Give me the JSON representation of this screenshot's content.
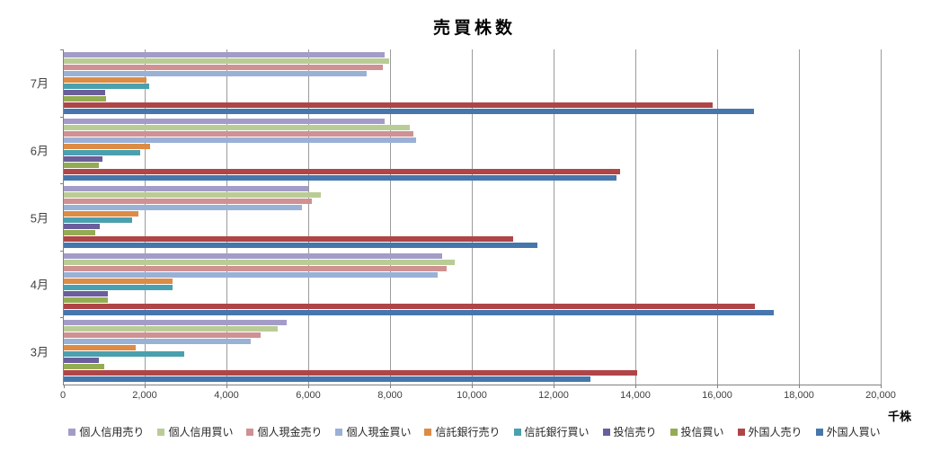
{
  "title": "売買株数",
  "axis": {
    "unit_label": "千株",
    "ticks": [
      {
        "label": "0",
        "value": 0
      },
      {
        "label": "2,000",
        "value": 2000
      },
      {
        "label": "4,000",
        "value": 4000
      },
      {
        "label": "6,000",
        "value": 6000
      },
      {
        "label": "8,000",
        "value": 8000
      },
      {
        "label": "10,000",
        "value": 10000
      },
      {
        "label": "12,000",
        "value": 12000
      },
      {
        "label": "14,000",
        "value": 14000
      },
      {
        "label": "16,000",
        "value": 16000
      },
      {
        "label": "18,000",
        "value": 18000
      },
      {
        "label": "20,000",
        "value": 20000
      }
    ]
  },
  "chart_data": {
    "type": "bar",
    "orientation": "horizontal",
    "title": "売買株数",
    "xlabel": "千株",
    "ylabel": "",
    "xlim": [
      0,
      20000
    ],
    "grid": true,
    "legend_position": "bottom",
    "categories": [
      "7月",
      "6月",
      "5月",
      "4月",
      "3月"
    ],
    "series": [
      {
        "name": "個人信用売り",
        "color": "#A49CC8",
        "values": [
          7850,
          7840,
          5980,
          9260,
          5460
        ]
      },
      {
        "name": "個人信用買い",
        "color": "#B9CC96",
        "values": [
          7950,
          8470,
          6290,
          9550,
          5220
        ]
      },
      {
        "name": "個人現金売り",
        "color": "#CF9192",
        "values": [
          7800,
          8560,
          6060,
          9360,
          4820
        ]
      },
      {
        "name": "個人現金買い",
        "color": "#9AB1D6",
        "values": [
          7400,
          8610,
          5830,
          9140,
          4580
        ]
      },
      {
        "name": "信託銀行売り",
        "color": "#DD8C45",
        "values": [
          2020,
          2120,
          1830,
          2670,
          1750
        ]
      },
      {
        "name": "信託銀行買い",
        "color": "#4AA0AE",
        "values": [
          2080,
          1870,
          1660,
          2670,
          2940
        ]
      },
      {
        "name": "投信売り",
        "color": "#6B5E9B",
        "values": [
          1010,
          940,
          880,
          1070,
          850
        ]
      },
      {
        "name": "投信買い",
        "color": "#93AC53",
        "values": [
          1030,
          850,
          760,
          1070,
          990
        ]
      },
      {
        "name": "外国人売り",
        "color": "#B04547",
        "values": [
          15860,
          13600,
          10990,
          16900,
          14020
        ]
      },
      {
        "name": "外国人買い",
        "color": "#4676AC",
        "values": [
          16870,
          13510,
          11590,
          17370,
          12870
        ]
      }
    ]
  }
}
